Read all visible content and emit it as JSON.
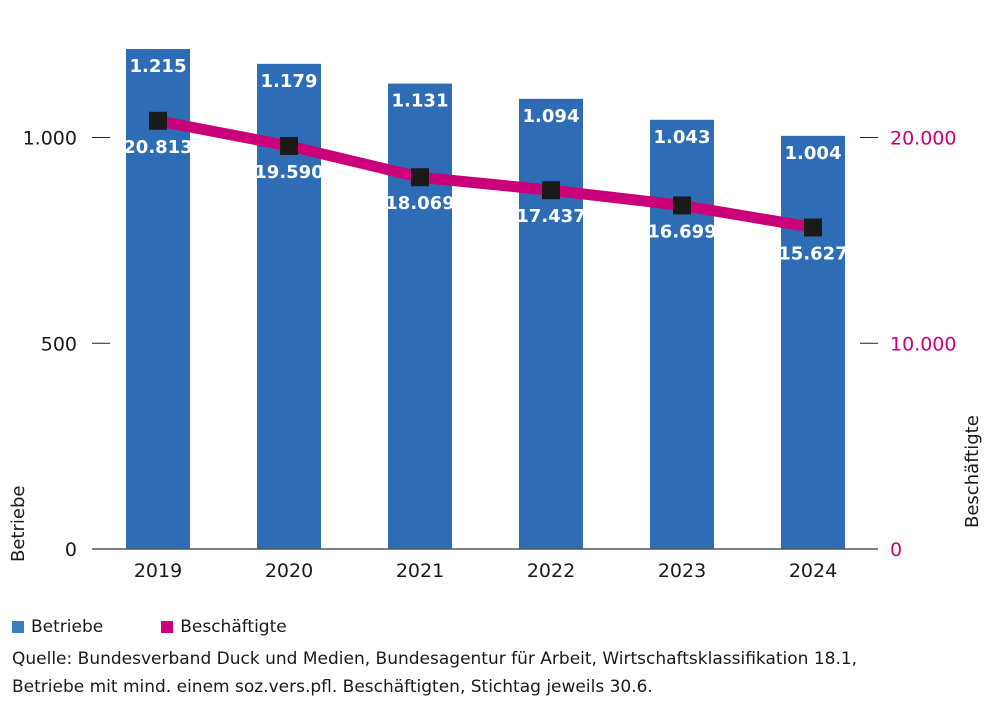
{
  "chart_data": {
    "type": "bar",
    "categories": [
      "2019",
      "2020",
      "2021",
      "2022",
      "2023",
      "2024"
    ],
    "series": [
      {
        "name": "Betriebe",
        "type": "bar",
        "axis": "left",
        "color": "#2e6db6",
        "values": [
          1215,
          1179,
          1131,
          1094,
          1043,
          1004
        ],
        "labels": [
          "1.215",
          "1.179",
          "1.131",
          "1.094",
          "1.043",
          "1.004"
        ]
      },
      {
        "name": "Beschäftigte",
        "type": "line",
        "axis": "right",
        "color": "#c9007a",
        "marker_color": "#1a1a1a",
        "values": [
          20813,
          19590,
          18069,
          17437,
          16699,
          15627
        ],
        "labels": [
          "20.813",
          "19.590",
          "18.069",
          "17.437",
          "16.699",
          "15.627"
        ]
      }
    ],
    "ylabel": "Betriebe",
    "y2label": "Beschäftigte",
    "ylim": [
      0,
      1200
    ],
    "y2lim": [
      0,
      24000
    ],
    "yticks": [
      {
        "value": 0,
        "label": "0"
      },
      {
        "value": 500,
        "label": "500"
      },
      {
        "value": 1000,
        "label": "1.000"
      }
    ],
    "y2ticks": [
      {
        "value": 0,
        "label": "0"
      },
      {
        "value": 10000,
        "label": "10.000"
      },
      {
        "value": 20000,
        "label": "20.000"
      }
    ],
    "grid": false,
    "legend": "bottom-left"
  },
  "legend": {
    "betriebe": "Betriebe",
    "beschaeftigte": "Beschäftigte"
  },
  "source": {
    "line1": "Quelle: Bundesverband Duck und Medien, Bundesagentur für Arbeit, Wirtschaftsklassifikation 18.1,",
    "line2": "Betriebe mit mind. einem soz.vers.pfl. Beschäftigten, Stichtag jeweils 30.6."
  }
}
